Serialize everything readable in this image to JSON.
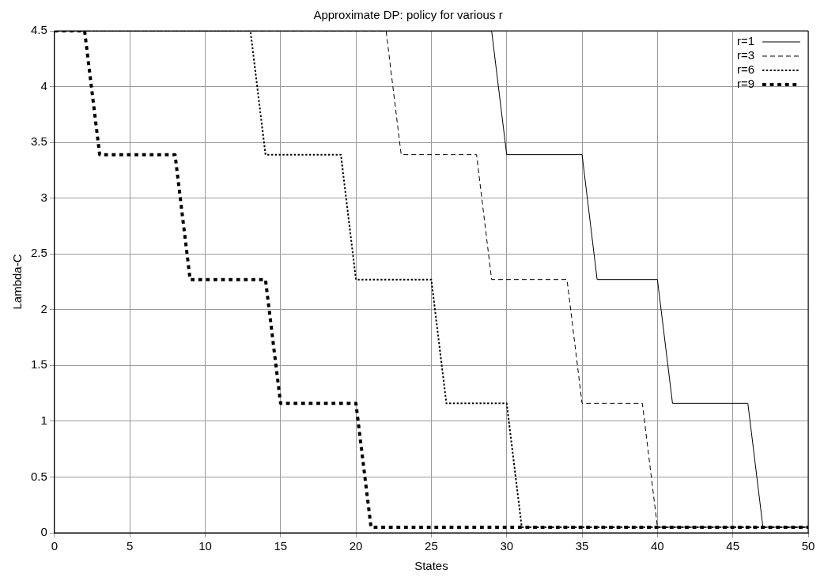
{
  "chart_data": {
    "type": "line",
    "title": "Approximate DP: policy for various r",
    "xlabel": "States",
    "ylabel": "Lambda-C",
    "xlim": [
      0,
      50
    ],
    "xticks": [
      0,
      5,
      10,
      15,
      20,
      25,
      30,
      35,
      40,
      45,
      50
    ],
    "ylim": [
      0,
      4.5
    ],
    "yticks": [
      0,
      0.5,
      1,
      1.5,
      2,
      2.5,
      3,
      3.5,
      4,
      4.5
    ],
    "grid": true,
    "legend": "top right",
    "series": [
      {
        "name": "r=1",
        "color": "#000000",
        "line_style": "solid",
        "x": [
          0,
          29,
          30,
          35,
          36,
          40,
          41,
          46,
          47,
          50
        ],
        "values": [
          4.5,
          4.5,
          3.39,
          3.39,
          2.27,
          2.27,
          1.16,
          1.16,
          0.05,
          0.05
        ]
      },
      {
        "name": "r=3",
        "color": "#000000",
        "line_style": "dashed",
        "x": [
          0,
          22,
          23,
          28,
          29,
          34,
          35,
          39,
          40,
          50
        ],
        "values": [
          4.5,
          4.5,
          3.39,
          3.39,
          2.27,
          2.27,
          1.16,
          1.16,
          0.05,
          0.05
        ]
      },
      {
        "name": "r=6",
        "color": "#000000",
        "line_style": "dotted",
        "x": [
          0,
          13,
          14,
          19,
          20,
          25,
          26,
          30,
          31,
          50
        ],
        "values": [
          4.5,
          4.5,
          3.39,
          3.39,
          2.27,
          2.27,
          1.16,
          1.16,
          0.05,
          0.05
        ]
      },
      {
        "name": "r=9",
        "color": "#000000",
        "line_style": "dotted",
        "x": [
          0,
          2,
          3,
          8,
          9,
          14,
          15,
          20,
          21,
          50
        ],
        "values": [
          4.5,
          4.5,
          3.39,
          3.39,
          2.27,
          2.27,
          1.16,
          1.16,
          0.05,
          0.05
        ]
      }
    ]
  }
}
